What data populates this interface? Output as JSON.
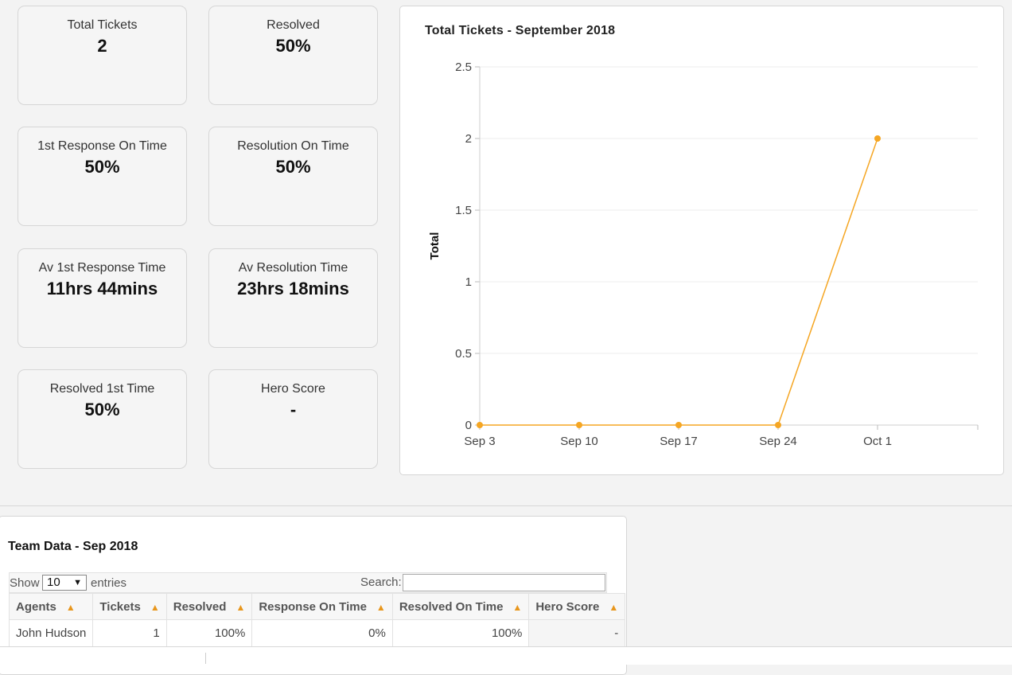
{
  "stats": {
    "total_tickets": {
      "label": "Total Tickets",
      "value": "2"
    },
    "resolved": {
      "label": "Resolved",
      "value": "50%"
    },
    "first_response_on_time": {
      "label": "1st Response On Time",
      "value": "50%"
    },
    "resolution_on_time": {
      "label": "Resolution On Time",
      "value": "50%"
    },
    "av_first_response_time": {
      "label": "Av 1st Response Time",
      "value": "11hrs 44mins"
    },
    "av_resolution_time": {
      "label": "Av Resolution Time",
      "value": "23hrs 18mins"
    },
    "resolved_first_time": {
      "label": "Resolved 1st Time",
      "value": "50%"
    },
    "hero_score": {
      "label": "Hero Score",
      "value": "-"
    }
  },
  "chart_data": {
    "type": "line",
    "title": "Total Tickets - September 2018",
    "xlabel": "",
    "ylabel": "Total",
    "categories": [
      "Sep 3",
      "Sep 10",
      "Sep 17",
      "Sep 24",
      "Oct 1"
    ],
    "series": [
      {
        "values": [
          0,
          0,
          0,
          0,
          2
        ]
      }
    ],
    "y_ticks": [
      "0",
      "0.5",
      "1",
      "1.5",
      "2",
      "2.5"
    ],
    "ylim": [
      0,
      2.5
    ],
    "grid": true,
    "color": "#f5a623"
  },
  "team": {
    "title": "Team Data - Sep 2018",
    "show_label": "Show",
    "entries_value": "10",
    "entries_label": "entries",
    "search_label": "Search:",
    "search_value": "",
    "columns": [
      "Agents",
      "Tickets",
      "Resolved",
      "Response On Time",
      "Resolved On Time",
      "Hero Score"
    ],
    "rows": [
      [
        "John Hudson",
        "1",
        "100%",
        "0%",
        "100%",
        "-"
      ]
    ]
  }
}
